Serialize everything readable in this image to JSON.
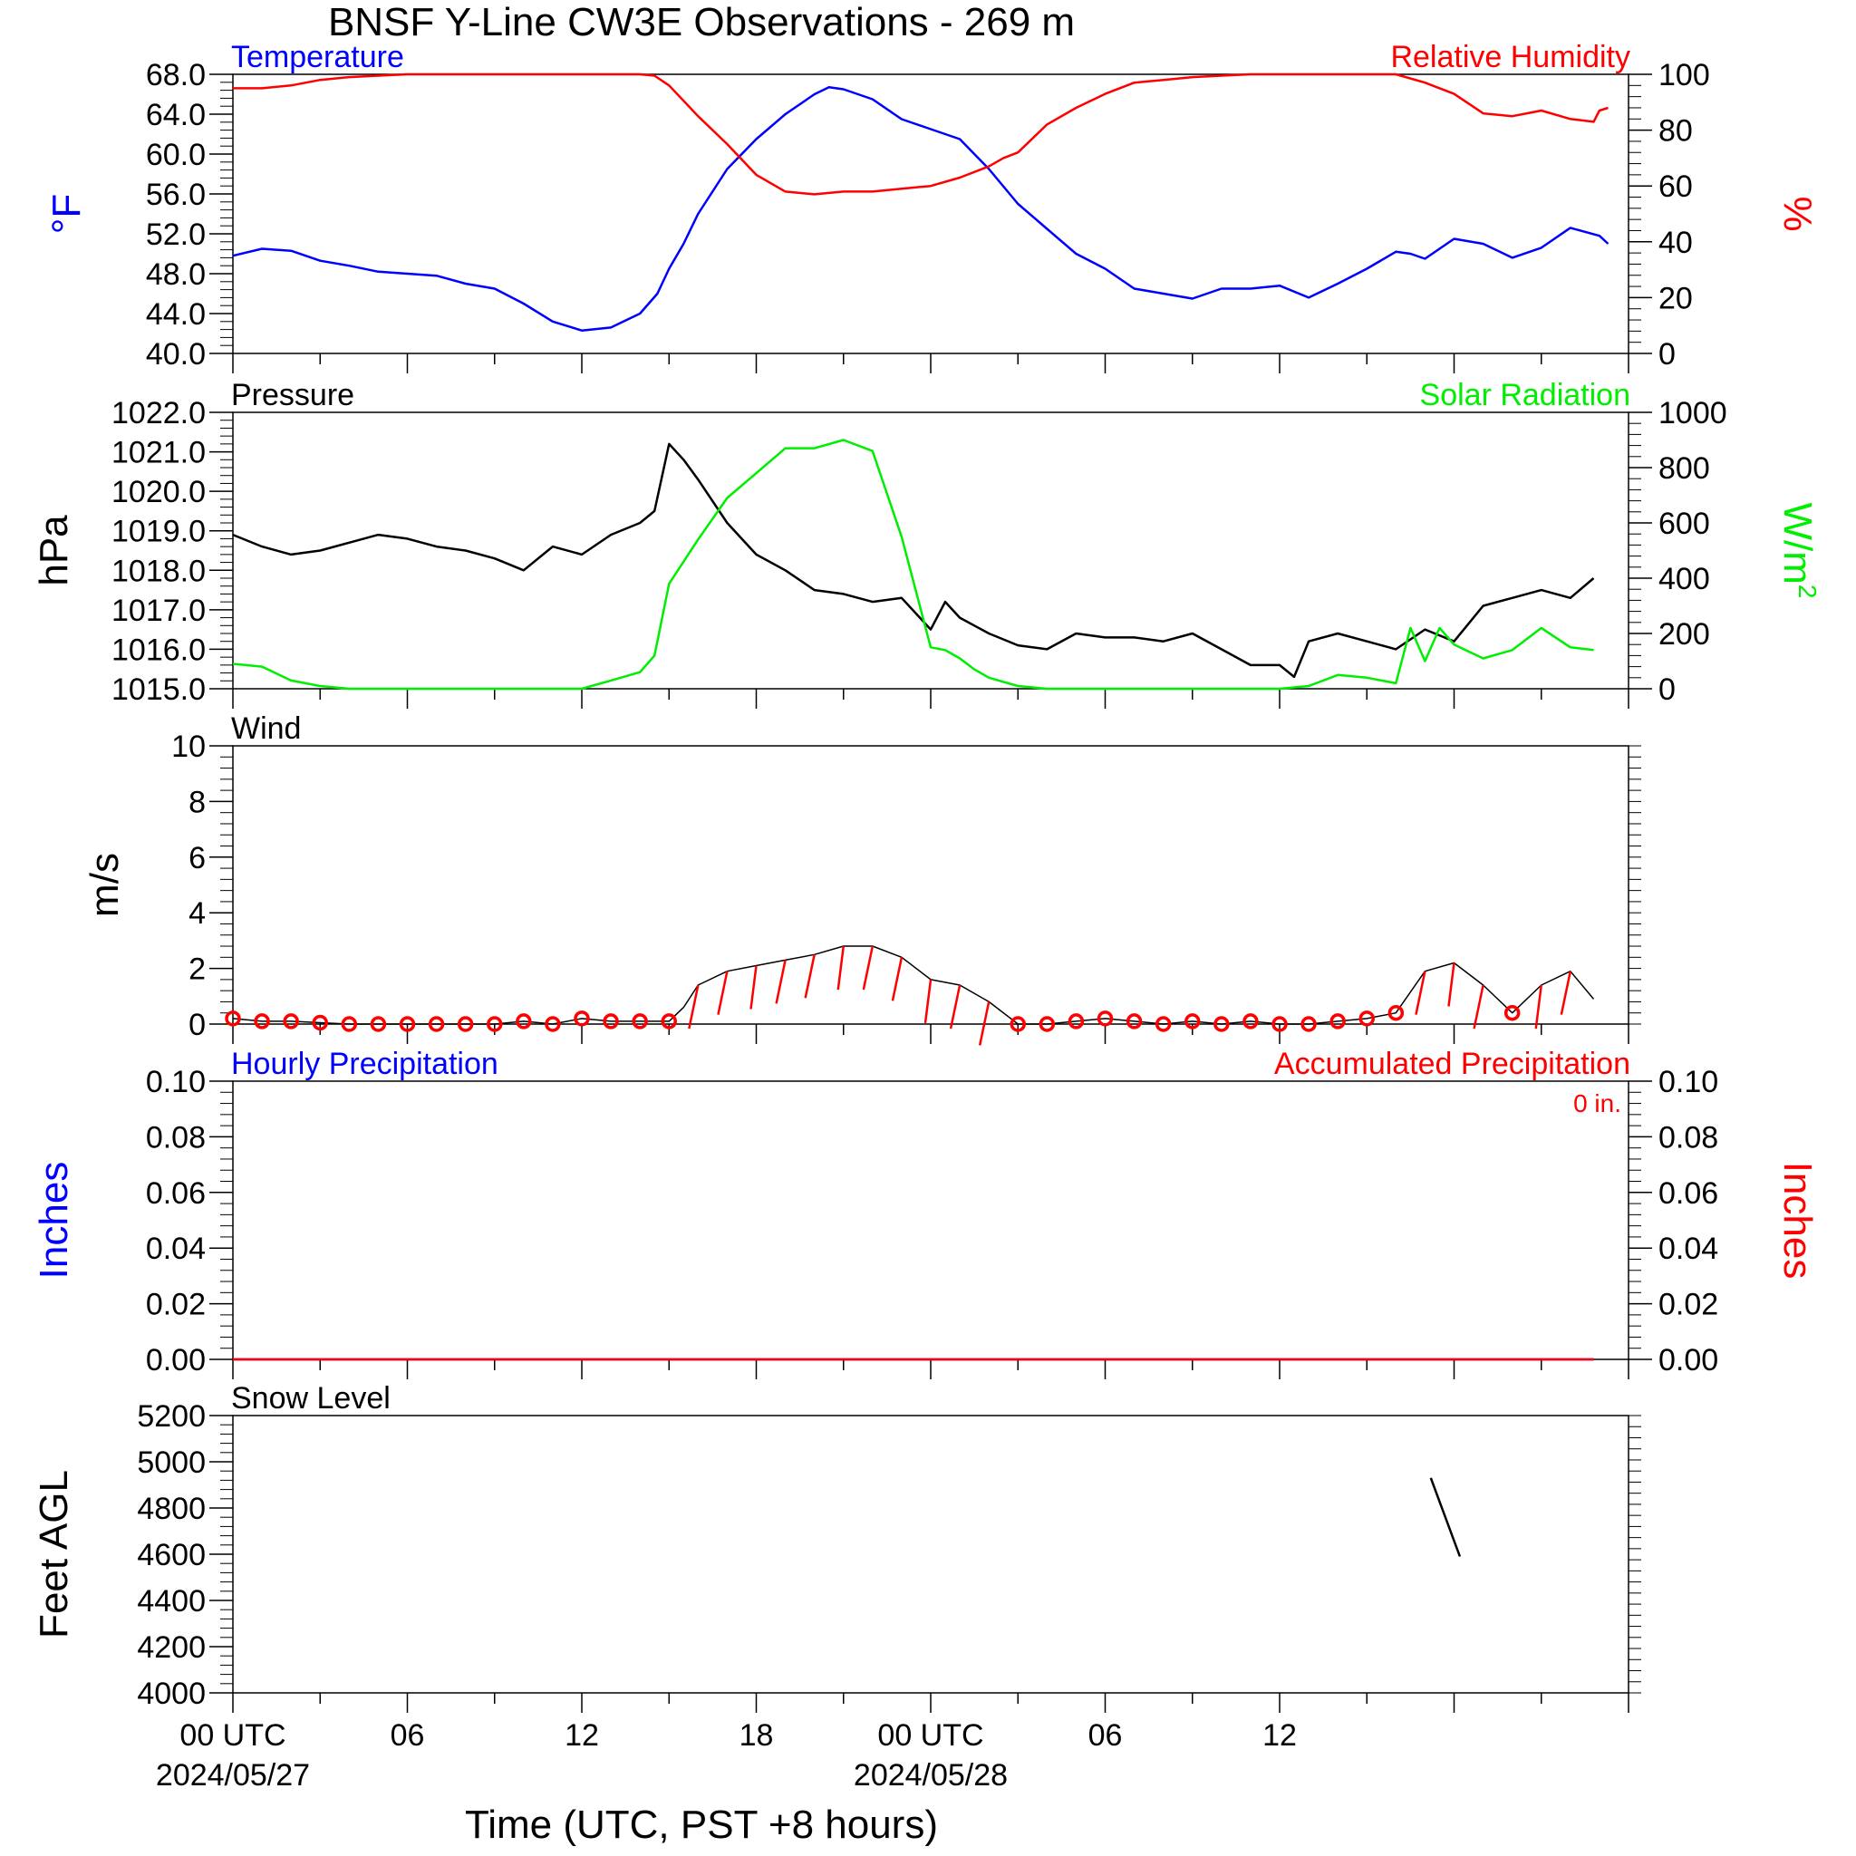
{
  "title": "BNSF Y-Line CW3E Observations - 269 m",
  "xaxis": {
    "title": "Time (UTC, PST +8 hours)",
    "ticks": [
      {
        "hour": 0,
        "label": "00 UTC",
        "date": "2024/05/27"
      },
      {
        "hour": 6,
        "label": "06",
        "date": ""
      },
      {
        "hour": 12,
        "label": "12",
        "date": ""
      },
      {
        "hour": 18,
        "label": "18",
        "date": ""
      },
      {
        "hour": 24,
        "label": "00 UTC",
        "date": "2024/05/28"
      },
      {
        "hour": 30,
        "label": "06",
        "date": ""
      },
      {
        "hour": 36,
        "label": "12",
        "date": ""
      }
    ]
  },
  "colors": {
    "blue": "#0000ff",
    "red": "#ff0000",
    "green": "#00ee00",
    "black": "#000000"
  },
  "chart_data": [
    {
      "type": "line",
      "name": "temperature-rh",
      "left_title": "Temperature",
      "right_title": "Relative Humidity",
      "ylabel_left": "°F",
      "ylabel_right": "%",
      "ylim_left": [
        40,
        68
      ],
      "ylim_right": [
        0,
        100
      ],
      "ytick_labels_left": [
        "40.0",
        "44.0",
        "48.0",
        "52.0",
        "56.0",
        "60.0",
        "64.0",
        "68.0"
      ],
      "ytick_labels_right": [
        "0",
        "20",
        "40",
        "60",
        "80",
        "100"
      ],
      "series": [
        {
          "name": "Temperature",
          "axis": "left",
          "color": "blue",
          "x": [
            0,
            1,
            2,
            3,
            4,
            5,
            6,
            7,
            8,
            9,
            10,
            11,
            12,
            13,
            14,
            14.6,
            15,
            15.5,
            16,
            17,
            18,
            19,
            20,
            20.5,
            21,
            22,
            23,
            24,
            25,
            26,
            27,
            28,
            29,
            30,
            31,
            32,
            33,
            34,
            35,
            36,
            37,
            38,
            39,
            40,
            40.5,
            41,
            42,
            43,
            44,
            45,
            46,
            47,
            47.3
          ],
          "y": [
            49.8,
            50.5,
            50.3,
            49.3,
            48.8,
            48.2,
            48.0,
            47.8,
            47.0,
            46.5,
            45.0,
            43.2,
            42.3,
            42.6,
            44.0,
            46.0,
            48.5,
            51.0,
            54.0,
            58.5,
            61.5,
            64.0,
            66.0,
            66.7,
            66.5,
            65.5,
            63.5,
            62.5,
            61.5,
            58.5,
            55.0,
            52.5,
            50.0,
            48.5,
            46.5,
            46.0,
            45.5,
            46.5,
            46.5,
            46.8,
            45.6,
            47.0,
            48.5,
            50.2,
            50.0,
            49.5,
            51.5,
            51.0,
            49.6,
            50.6,
            52.6,
            51.8,
            51.0
          ]
        },
        {
          "name": "Relative Humidity",
          "axis": "right",
          "color": "red",
          "x": [
            0,
            1,
            2,
            3,
            4,
            5,
            6,
            7,
            8,
            9,
            10,
            11,
            12,
            13,
            14,
            14.5,
            15,
            16,
            17,
            18,
            19,
            20,
            21,
            22,
            23,
            24,
            25,
            26,
            26.5,
            27,
            28,
            29,
            30,
            31,
            32,
            33,
            34,
            35,
            36,
            37,
            38,
            39,
            40,
            41,
            42,
            43,
            44,
            45,
            46,
            46.8,
            47,
            47.3
          ],
          "y": [
            95,
            95,
            96,
            98,
            99,
            99.5,
            100,
            100,
            100,
            100,
            100,
            100,
            100,
            100,
            100,
            99.5,
            96,
            85,
            75,
            64,
            58,
            57,
            58,
            58,
            59,
            60,
            63,
            67,
            70,
            72,
            82,
            88,
            93,
            97,
            98,
            99,
            99.5,
            100,
            100,
            100,
            100,
            100,
            100,
            97,
            93,
            86,
            85,
            87,
            84,
            83,
            87,
            88
          ]
        }
      ]
    },
    {
      "type": "line",
      "name": "pressure-solar",
      "left_title": "Pressure",
      "right_title": "Solar Radiation",
      "ylabel_left": "hPa",
      "ylabel_right": "W/m",
      "ylabel_right_sup": "2",
      "ylim_left": [
        1015,
        1022
      ],
      "ylim_right": [
        0,
        1000
      ],
      "ytick_labels_left": [
        "1015.0",
        "1016.0",
        "1017.0",
        "1018.0",
        "1019.0",
        "1020.0",
        "1021.0",
        "1022.0"
      ],
      "ytick_labels_right": [
        "0",
        "200",
        "400",
        "600",
        "800",
        "1000"
      ],
      "series": [
        {
          "name": "Pressure",
          "axis": "left",
          "color": "black",
          "x": [
            0,
            1,
            2,
            3,
            4,
            5,
            6,
            7,
            8,
            9,
            10,
            11,
            12,
            13,
            14,
            14.5,
            15,
            15.5,
            16,
            17,
            18,
            19,
            20,
            21,
            22,
            23,
            24,
            24.5,
            25,
            25.5,
            26,
            27,
            28,
            29,
            30,
            31,
            32,
            33,
            34,
            35,
            36,
            36.5,
            37,
            38,
            39,
            40,
            41,
            42,
            43,
            44,
            45,
            46,
            46.8
          ],
          "y": [
            1018.9,
            1018.6,
            1018.4,
            1018.5,
            1018.7,
            1018.9,
            1018.8,
            1018.6,
            1018.5,
            1018.3,
            1018.0,
            1018.6,
            1018.4,
            1018.9,
            1019.2,
            1019.5,
            1021.2,
            1020.8,
            1020.3,
            1019.2,
            1018.4,
            1018.0,
            1017.5,
            1017.4,
            1017.2,
            1017.3,
            1016.5,
            1017.2,
            1016.8,
            1016.6,
            1016.4,
            1016.1,
            1016.0,
            1016.4,
            1016.3,
            1016.3,
            1016.2,
            1016.4,
            1016.0,
            1015.6,
            1015.6,
            1015.3,
            1016.2,
            1016.4,
            1016.2,
            1016.0,
            1016.5,
            1016.2,
            1017.1,
            1017.3,
            1017.5,
            1017.3,
            1017.8
          ]
        },
        {
          "name": "Solar Radiation",
          "axis": "right",
          "color": "green",
          "x": [
            0,
            1,
            2,
            3,
            4,
            5,
            6,
            7,
            8,
            9,
            10,
            11,
            12,
            13,
            14,
            14.5,
            15,
            15.5,
            16,
            17,
            18,
            19,
            20,
            21,
            22,
            23,
            24,
            24.5,
            25,
            25.5,
            26,
            27,
            28,
            29,
            30,
            31,
            32,
            33,
            34,
            35,
            36,
            37,
            38,
            39,
            40,
            40.5,
            41,
            41.5,
            42,
            43,
            44,
            45,
            46,
            46.8
          ],
          "y": [
            90,
            80,
            30,
            10,
            0,
            0,
            0,
            0,
            0,
            0,
            0,
            0,
            0,
            30,
            60,
            120,
            380,
            460,
            540,
            690,
            780,
            870,
            870,
            900,
            860,
            550,
            150,
            140,
            110,
            70,
            40,
            10,
            0,
            0,
            0,
            0,
            0,
            0,
            0,
            0,
            0,
            10,
            50,
            40,
            20,
            220,
            100,
            220,
            160,
            110,
            140,
            220,
            150,
            140
          ]
        }
      ]
    },
    {
      "type": "line",
      "name": "wind",
      "left_title": "Wind",
      "ylabel_left": "m/s",
      "ylim_left": [
        0,
        10
      ],
      "ytick_labels_left": [
        "0",
        "2",
        "4",
        "6",
        "8",
        "10"
      ],
      "series": [
        {
          "name": "Wind",
          "axis": "left",
          "color": "black",
          "x": [
            0,
            1,
            2,
            3,
            4,
            5,
            6,
            7,
            8,
            9,
            10,
            11,
            12,
            13,
            14,
            15,
            15.5,
            16,
            17,
            18,
            19,
            20,
            21,
            22,
            23,
            24,
            25,
            26,
            27,
            28,
            29,
            30,
            31,
            32,
            33,
            34,
            35,
            36,
            37,
            38,
            39,
            40,
            41,
            42,
            43,
            44,
            45,
            46,
            46.8
          ],
          "y": [
            0.2,
            0.1,
            0.1,
            0.05,
            0,
            0,
            0,
            0,
            0,
            0,
            0.1,
            0,
            0.2,
            0.1,
            0.1,
            0.1,
            0.6,
            1.4,
            1.9,
            2.1,
            2.3,
            2.5,
            2.8,
            2.8,
            2.4,
            1.6,
            1.4,
            0.8,
            0,
            0,
            0.1,
            0.2,
            0.1,
            0,
            0.1,
            0,
            0.1,
            0,
            0,
            0.1,
            0.2,
            0.4,
            1.9,
            2.2,
            1.4,
            0.4,
            1.4,
            1.9,
            0.9
          ]
        }
      ]
    },
    {
      "type": "line",
      "name": "precipitation",
      "left_title": "Hourly Precipitation",
      "right_title": "Accumulated Precipitation",
      "annotation": "0 in.",
      "ylabel_left": "Inches",
      "ylabel_right": "Inches",
      "ylim_left": [
        0,
        0.1
      ],
      "ylim_right": [
        0,
        0.1
      ],
      "ytick_labels_left": [
        "0.00",
        "0.02",
        "0.04",
        "0.06",
        "0.08",
        "0.10"
      ],
      "ytick_labels_right": [
        "0.00",
        "0.02",
        "0.04",
        "0.06",
        "0.08",
        "0.10"
      ],
      "series": [
        {
          "name": "Hourly Precipitation",
          "axis": "left",
          "color": "blue",
          "x": [
            0,
            46.8
          ],
          "y": [
            0,
            0
          ]
        },
        {
          "name": "Accumulated Precipitation",
          "axis": "right",
          "color": "red",
          "x": [
            0,
            46.8
          ],
          "y": [
            0,
            0
          ]
        }
      ]
    },
    {
      "type": "line",
      "name": "snow-level",
      "left_title": "Snow Level",
      "ylabel_left": "Feet AGL",
      "ylim_left": [
        4000,
        5200
      ],
      "ytick_labels_left": [
        "4000",
        "4200",
        "4400",
        "4600",
        "4800",
        "5000",
        "5200"
      ],
      "series": [
        {
          "name": "Snow Level",
          "axis": "left",
          "color": "black",
          "x": [
            41.2,
            42.2
          ],
          "y": [
            4930,
            4590
          ]
        }
      ]
    }
  ]
}
